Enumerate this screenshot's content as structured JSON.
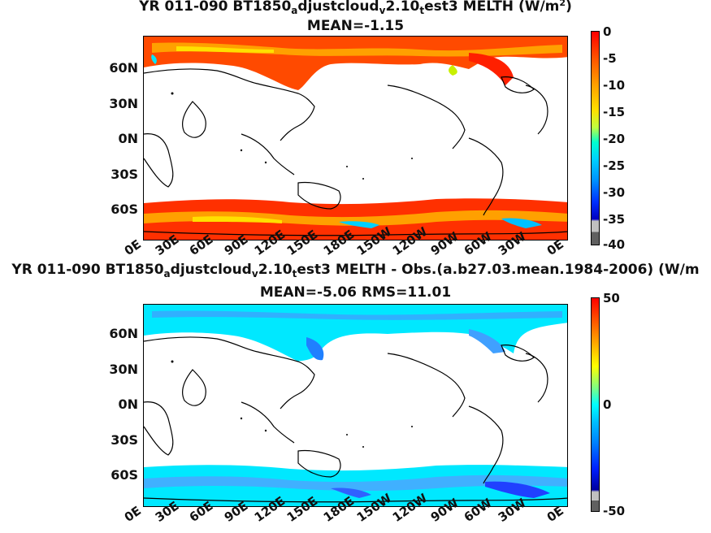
{
  "panel1": {
    "title_a": "YR 011-090 BT1850",
    "title_b": "a",
    "title_c": "djustcloud",
    "title_d": "v",
    "title_e": "2.10",
    "title_f": "t",
    "title_g": "est3  MELTH (W/m",
    "title_h": "2",
    "title_i": ")",
    "subtitle": "MEAN=-1.15",
    "cbar_labels": [
      "0",
      "-5",
      "-10",
      "-15",
      "-20",
      "-25",
      "-30",
      "-35",
      "-40"
    ]
  },
  "panel2": {
    "title_a": "YR 011-090 BT1850",
    "title_b": "a",
    "title_c": "djustcloud",
    "title_d": "v",
    "title_e": "2.10",
    "title_f": "t",
    "title_g": "est3 MELTH - Obs.(a.b27.03.mean.1984-2006) (W/m",
    "subtitle": "MEAN=-5.06 RMS=11.01",
    "cbar_labels": [
      "50",
      "0",
      "-50"
    ]
  },
  "lat_labels": [
    "60N",
    "30N",
    "0N",
    "30S",
    "60S"
  ],
  "lon_labels": [
    "0E",
    "30E",
    "60E",
    "90E",
    "120E",
    "150E",
    "180E",
    "150W",
    "120W",
    "90W",
    "60W",
    "30W",
    "0E"
  ],
  "colors": {
    "ocean_fill_1": "#ff3a00",
    "ocean_fill_2": "#00e8ff",
    "land": "#ffffff",
    "coast": "#000000"
  }
}
